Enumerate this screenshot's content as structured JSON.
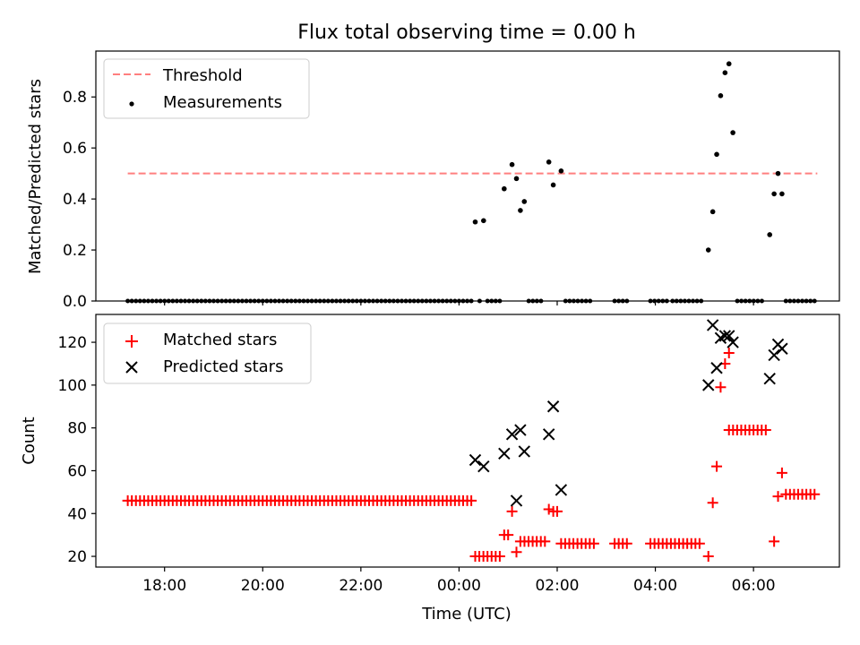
{
  "figure": {
    "title": "Flux total observing time = 0.00 h",
    "xlabel": "Time (UTC)",
    "x_tick_labels": [
      "18:00",
      "20:00",
      "22:00",
      "00:00",
      "02:00",
      "04:00",
      "06:00"
    ]
  },
  "colors": {
    "threshold": "#ff7f7f",
    "measurements": "#000000",
    "matched": "#ff0000",
    "predicted": "#000000"
  },
  "chart_data": [
    {
      "type": "scatter",
      "ylabel": "Matched/Predicted stars",
      "ylim": [
        0,
        0.98
      ],
      "y_ticks": [
        "0.0",
        "0.2",
        "0.4",
        "0.6",
        "0.8"
      ],
      "xlim_hours": [
        16.6,
        31.75
      ],
      "legend": {
        "placement": "top-left",
        "entries": [
          "Threshold",
          "Measurements"
        ]
      },
      "threshold": {
        "name": "Threshold",
        "value": 0.5,
        "x_range_hours": [
          17.25,
          31.3
        ]
      },
      "series": [
        {
          "name": "Measurements",
          "points": [
            [
              24.33,
              0.31
            ],
            [
              24.5,
              0.315
            ],
            [
              24.92,
              0.44
            ],
            [
              25.08,
              0.535
            ],
            [
              25.17,
              0.48
            ],
            [
              25.25,
              0.355
            ],
            [
              25.33,
              0.39
            ],
            [
              25.83,
              0.545
            ],
            [
              25.92,
              0.455
            ],
            [
              26.08,
              0.51
            ],
            [
              29.08,
              0.2
            ],
            [
              29.17,
              0.35
            ],
            [
              29.25,
              0.575
            ],
            [
              29.33,
              0.805
            ],
            [
              29.42,
              0.895
            ],
            [
              29.5,
              0.93
            ],
            [
              29.58,
              0.66
            ],
            [
              30.33,
              0.26
            ],
            [
              30.42,
              0.42
            ],
            [
              30.5,
              0.5
            ],
            [
              30.58,
              0.42
            ]
          ],
          "zero_ranges_hours": [
            [
              17.25,
              24.25
            ],
            [
              24.42,
              24.42
            ],
            [
              24.58,
              24.83
            ],
            [
              25.42,
              25.75
            ],
            [
              26.17,
              26.75
            ],
            [
              27.17,
              27.5
            ],
            [
              27.9,
              28.25
            ],
            [
              28.35,
              28.95
            ],
            [
              29.67,
              30.25
            ],
            [
              30.66,
              31.25
            ]
          ]
        }
      ]
    },
    {
      "type": "scatter",
      "ylabel": "Count",
      "ylim": [
        15,
        133
      ],
      "y_ticks": [
        "20",
        "40",
        "60",
        "80",
        "100",
        "120"
      ],
      "xlim_hours": [
        16.6,
        31.75
      ],
      "legend": {
        "placement": "top-left",
        "entries": [
          "Matched stars",
          "Predicted stars"
        ]
      },
      "series": [
        {
          "name": "Matched stars",
          "runs": [
            {
              "from": 17.25,
              "to": 24.25,
              "y": 46
            },
            {
              "from": 24.33,
              "to": 24.83,
              "y": 20
            },
            {
              "from": 25.25,
              "to": 25.75,
              "y": 27
            },
            {
              "from": 26.08,
              "to": 26.75,
              "y": 26
            },
            {
              "from": 27.17,
              "to": 27.5,
              "y": 26
            },
            {
              "from": 27.9,
              "to": 28.9,
              "y": 26
            },
            {
              "from": 29.5,
              "to": 30.25,
              "y": 79
            },
            {
              "from": 30.66,
              "to": 31.25,
              "y": 49
            }
          ],
          "points": [
            [
              24.92,
              30
            ],
            [
              25.0,
              30
            ],
            [
              25.08,
              41
            ],
            [
              25.17,
              22
            ],
            [
              25.83,
              42
            ],
            [
              25.92,
              41
            ],
            [
              26.0,
              41
            ],
            [
              29.08,
              20
            ],
            [
              29.17,
              45
            ],
            [
              29.25,
              62
            ],
            [
              29.33,
              99
            ],
            [
              29.42,
              110
            ],
            [
              29.5,
              115
            ],
            [
              30.42,
              27
            ],
            [
              30.5,
              48
            ],
            [
              30.58,
              59
            ]
          ]
        },
        {
          "name": "Predicted stars",
          "points": [
            [
              24.33,
              65
            ],
            [
              24.5,
              62
            ],
            [
              24.92,
              68
            ],
            [
              25.08,
              77
            ],
            [
              25.17,
              46
            ],
            [
              25.25,
              79
            ],
            [
              25.33,
              69
            ],
            [
              25.83,
              77
            ],
            [
              25.92,
              90
            ],
            [
              26.08,
              51
            ],
            [
              29.08,
              100
            ],
            [
              29.17,
              128
            ],
            [
              29.25,
              108
            ],
            [
              29.33,
              122
            ],
            [
              29.42,
              123
            ],
            [
              29.5,
              123
            ],
            [
              29.58,
              120
            ],
            [
              30.33,
              103
            ],
            [
              30.42,
              114
            ],
            [
              30.5,
              119
            ],
            [
              30.58,
              117
            ]
          ]
        }
      ]
    }
  ]
}
